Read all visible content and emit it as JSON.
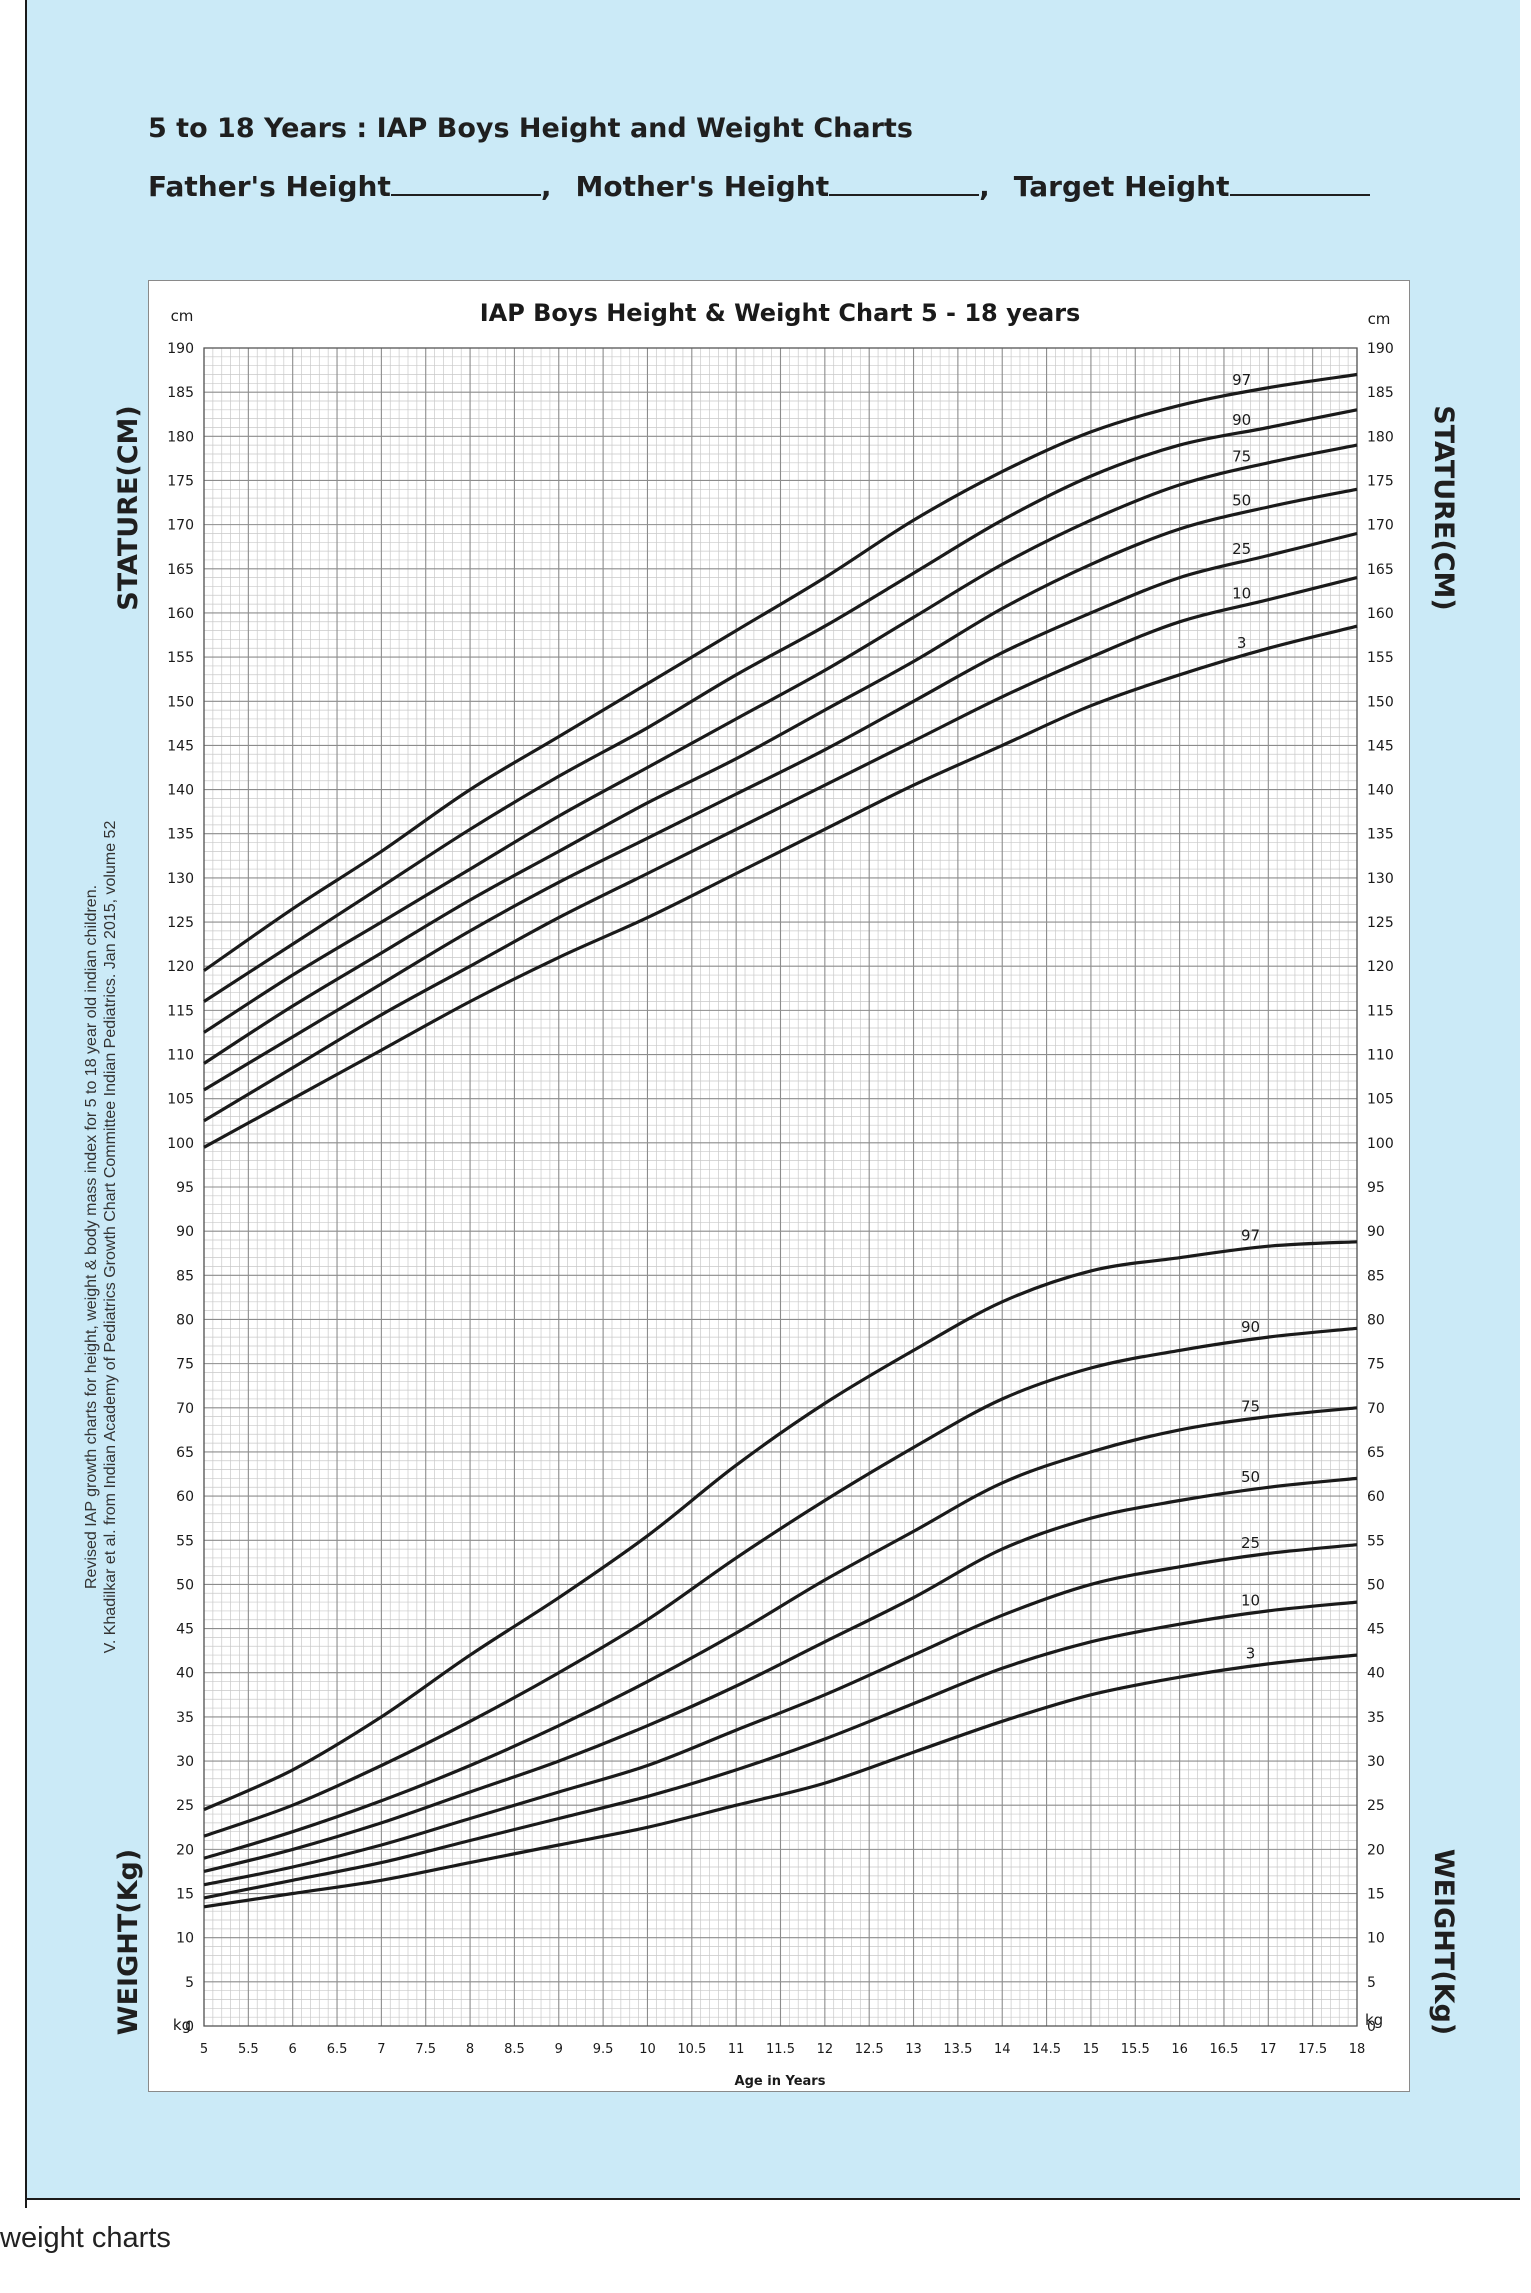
{
  "header": {
    "title": "5 to 18 Years : IAP Boys Height and Weight Charts",
    "father_label": "Father's Height",
    "mother_label": "Mother's Height",
    "target_label": "Target Height",
    "separator": ","
  },
  "caption": "weight charts",
  "chart_data": {
    "type": "line",
    "title": "IAP Boys Height & Weight Chart 5 - 18 years",
    "xlabel": "Age in Years",
    "xlim": [
      5,
      18
    ],
    "ylim": [
      0,
      190
    ],
    "x_ticks": [
      "5",
      "5.5",
      "6",
      "6.5",
      "7",
      "7.5",
      "8",
      "8.5",
      "9",
      "9.5",
      "10",
      "10.5",
      "11",
      "11.5",
      "12",
      "12.5",
      "13",
      "13.5",
      "14",
      "14.5",
      "15",
      "15.5",
      "16",
      "16.5",
      "17",
      "17.5",
      "18"
    ],
    "y_ticks": [
      "0",
      "5",
      "10",
      "15",
      "20",
      "25",
      "30",
      "35",
      "40",
      "45",
      "50",
      "55",
      "60",
      "65",
      "70",
      "75",
      "80",
      "85",
      "90",
      "95",
      "100",
      "105",
      "110",
      "115",
      "120",
      "125",
      "130",
      "135",
      "140",
      "145",
      "150",
      "155",
      "160",
      "165",
      "170",
      "175",
      "180",
      "185",
      "190"
    ],
    "unit_top_left": "cm",
    "unit_top_right": "cm",
    "unit_bottom_left": "kg",
    "unit_bottom_right": "kg",
    "axis_label_height": "STATURE(CM)",
    "axis_label_weight": "WEIGHT(Kg)",
    "side_note_1": "Revised IAP growth charts for height, weight & body mass index for 5 to 18 year old indian children.",
    "side_note_2": "V. Khadilkar et al. from Indian Academy of Pediatrics Growth Chart Committee Indian Pediatrics. Jan 2015, volume 52",
    "grid": true,
    "x": [
      5,
      6,
      7,
      8,
      9,
      10,
      11,
      12,
      13,
      14,
      15,
      16,
      17,
      18
    ],
    "height_series": [
      {
        "name": "97",
        "values": [
          119.5,
          126.5,
          133,
          140,
          146,
          152,
          158,
          164,
          170.5,
          176,
          180.5,
          183.5,
          185.5,
          187
        ]
      },
      {
        "name": "90",
        "values": [
          116,
          122.5,
          129,
          135.5,
          141.5,
          147,
          153,
          158.5,
          164.5,
          170.5,
          175.5,
          179,
          181,
          183
        ]
      },
      {
        "name": "75",
        "values": [
          112.5,
          119,
          125,
          131,
          137,
          142.5,
          148,
          153.5,
          159.5,
          165.5,
          170.5,
          174.5,
          177,
          179
        ]
      },
      {
        "name": "50",
        "values": [
          109,
          115.5,
          121.5,
          127.5,
          133,
          138.5,
          143.5,
          149,
          154.5,
          160.5,
          165.5,
          169.5,
          172,
          174
        ]
      },
      {
        "name": "25",
        "values": [
          106,
          112,
          118,
          124,
          129.5,
          134.5,
          139.5,
          144.5,
          150,
          155.5,
          160,
          164,
          166.5,
          169
        ]
      },
      {
        "name": "10",
        "values": [
          102.5,
          108.5,
          114.5,
          120,
          125.5,
          130.5,
          135.5,
          140.5,
          145.5,
          150.5,
          155,
          159,
          161.5,
          164
        ]
      },
      {
        "name": "3",
        "values": [
          99.5,
          105,
          110.5,
          116,
          121,
          125.5,
          130.5,
          135.5,
          140.5,
          145,
          149.5,
          153,
          156,
          158.5
        ]
      }
    ],
    "weight_series": [
      {
        "name": "97",
        "values": [
          24.5,
          29,
          35,
          42,
          48.5,
          55.5,
          63.5,
          70.5,
          76.5,
          82,
          85.5,
          87,
          88.3,
          88.8
        ]
      },
      {
        "name": "90",
        "values": [
          21.5,
          25,
          29.5,
          34.5,
          40,
          46,
          53,
          59.5,
          65.5,
          71,
          74.5,
          76.5,
          78,
          79
        ]
      },
      {
        "name": "75",
        "values": [
          19,
          22,
          25.5,
          29.5,
          34,
          39,
          44.5,
          50.5,
          56,
          61.5,
          65,
          67.5,
          69,
          70
        ]
      },
      {
        "name": "50",
        "values": [
          17.5,
          20,
          23,
          26.5,
          30,
          34,
          38.5,
          43.5,
          48.5,
          54,
          57.5,
          59.5,
          61,
          62
        ]
      },
      {
        "name": "25",
        "values": [
          16,
          18,
          20.5,
          23.5,
          26.5,
          29.5,
          33.5,
          37.5,
          42,
          46.5,
          50,
          52,
          53.5,
          54.5
        ]
      },
      {
        "name": "10",
        "values": [
          14.5,
          16.5,
          18.5,
          21,
          23.5,
          26,
          29,
          32.5,
          36.5,
          40.5,
          43.5,
          45.5,
          47,
          48
        ]
      },
      {
        "name": "3",
        "values": [
          13.5,
          15,
          16.5,
          18.5,
          20.5,
          22.5,
          25,
          27.5,
          31,
          34.5,
          37.5,
          39.5,
          41,
          42
        ]
      }
    ]
  }
}
